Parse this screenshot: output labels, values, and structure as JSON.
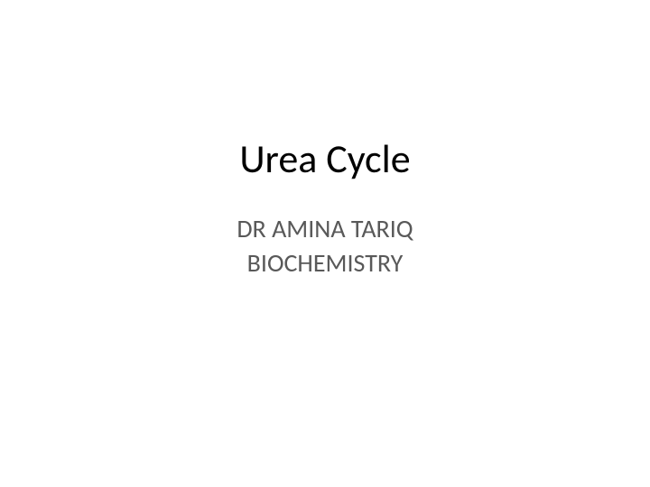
{
  "slide": {
    "title": "Urea Cycle",
    "author_line": "DR AMINA TARIQ",
    "department_line": "BIOCHEMISTRY",
    "background_color": "#ffffff",
    "title_color": "#000000",
    "subtitle_color": "#595959",
    "title_fontsize": 44,
    "subtitle_fontsize": 28
  }
}
